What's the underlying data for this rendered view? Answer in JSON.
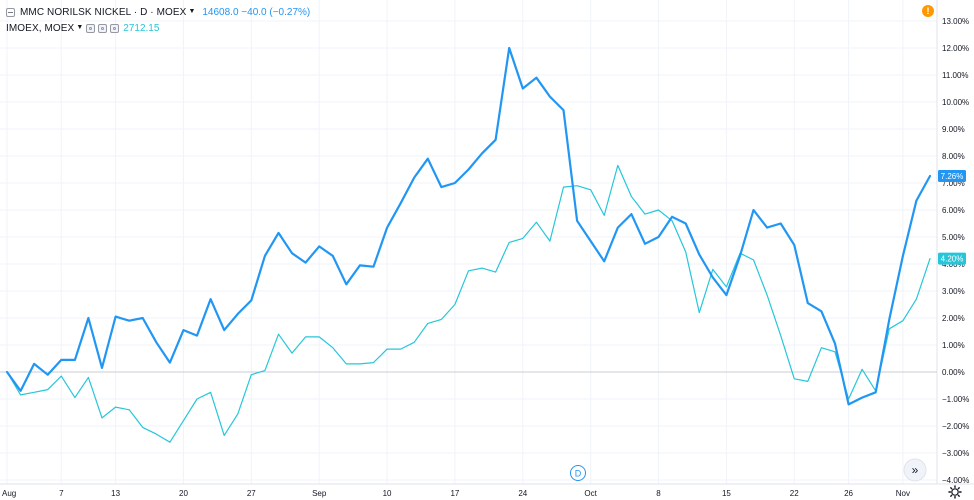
{
  "legend": {
    "main_symbol": "MMC NORILSK NICKEL · D · MOEX",
    "main_values": "14608.0 −40.0 (−0.27%)",
    "compare_symbol": "IMOEX, MOEX",
    "compare_value": "2712.15"
  },
  "alert_badge": "!",
  "interval_marker": "D",
  "scroll_button": "»",
  "settings_icon": "gear-icon",
  "colors": {
    "main": "#2196f3",
    "compare": "#26c6da",
    "grid": "#f0f3fa",
    "axis_text": "#131722",
    "zero_line": "#c8ccd6"
  },
  "chart_data": {
    "type": "line",
    "y_unit": "%",
    "ylim": [
      -4.6,
      13.6
    ],
    "y_ticks": [
      13,
      12,
      11,
      10,
      9,
      8,
      7,
      6,
      5,
      4,
      3,
      2,
      1,
      0,
      -1,
      -2,
      -3,
      -4
    ],
    "y_tick_labels": [
      "13.00%",
      "12.00%",
      "11.00%",
      "10.00%",
      "9.00%",
      "8.00%",
      "7.00%",
      "6.00%",
      "5.00%",
      "4.00%",
      "3.00%",
      "2.00%",
      "1.00%",
      "0.00%",
      "−1.00%",
      "−2.00%",
      "−3.00%",
      "−4.00%"
    ],
    "x_tick_labels": [
      {
        "label": "Aug",
        "day": 0
      },
      {
        "label": "7",
        "day": 4
      },
      {
        "label": "13",
        "day": 8
      },
      {
        "label": "20",
        "day": 13
      },
      {
        "label": "27",
        "day": 18
      },
      {
        "label": "Sep",
        "day": 23
      },
      {
        "label": "10",
        "day": 28
      },
      {
        "label": "17",
        "day": 33
      },
      {
        "label": "24",
        "day": 38
      },
      {
        "label": "Oct",
        "day": 43
      },
      {
        "label": "8",
        "day": 48
      },
      {
        "label": "15",
        "day": 53
      },
      {
        "label": "22",
        "day": 58
      },
      {
        "label": "26",
        "day": 62
      },
      {
        "label": "Nov",
        "day": 66
      }
    ],
    "x_days": [
      0,
      1,
      2,
      3,
      4,
      5,
      6,
      7,
      8,
      9,
      10,
      11,
      12,
      13,
      14,
      15,
      16,
      17,
      18,
      19,
      20,
      21,
      22,
      23,
      24,
      25,
      26,
      27,
      28,
      29,
      30,
      31,
      32,
      33,
      34,
      35,
      36,
      37,
      38,
      39,
      40,
      41,
      42,
      43,
      44,
      45,
      46,
      47,
      48,
      49,
      50,
      51,
      52,
      53,
      54,
      55,
      56,
      57,
      58,
      59,
      60,
      61,
      62,
      63,
      64,
      65,
      66,
      67,
      68
    ],
    "series": [
      {
        "label": "MMC NORILSK NICKEL",
        "last_label": "7.26%",
        "values": [
          0.0,
          -0.7,
          0.3,
          -0.1,
          0.45,
          0.45,
          2.0,
          0.15,
          2.05,
          1.9,
          2.0,
          1.1,
          0.35,
          1.55,
          1.35,
          2.7,
          1.55,
          2.15,
          2.65,
          4.3,
          5.15,
          4.4,
          4.05,
          4.65,
          4.3,
          3.25,
          3.95,
          3.9,
          5.35,
          6.25,
          7.2,
          7.9,
          6.85,
          7.0,
          7.5,
          8.1,
          8.6,
          12.0,
          10.5,
          10.9,
          10.2,
          9.7,
          5.6,
          4.85,
          4.1,
          5.35,
          5.85,
          4.75,
          5.0,
          5.75,
          5.5,
          4.35,
          3.5,
          2.85,
          4.3,
          6.0,
          5.35,
          5.5,
          4.7,
          2.55,
          2.25,
          1.05,
          -1.2,
          -0.95,
          -0.75,
          1.95,
          4.3,
          6.35,
          7.26
        ]
      },
      {
        "label": "IMOEX",
        "last_label": "4.20%",
        "values": [
          0.0,
          -0.85,
          -0.75,
          -0.65,
          -0.15,
          -0.95,
          -0.2,
          -1.7,
          -1.3,
          -1.4,
          -2.05,
          -2.3,
          -2.6,
          -1.8,
          -1.0,
          -0.75,
          -2.35,
          -1.55,
          -0.1,
          0.05,
          1.4,
          0.7,
          1.3,
          1.3,
          0.9,
          0.3,
          0.3,
          0.35,
          0.85,
          0.85,
          1.1,
          1.8,
          1.95,
          2.5,
          3.75,
          3.85,
          3.7,
          4.8,
          4.95,
          5.55,
          4.85,
          6.85,
          6.9,
          6.75,
          5.8,
          7.65,
          6.5,
          5.85,
          6.0,
          5.6,
          4.45,
          2.2,
          3.8,
          3.15,
          4.4,
          4.15,
          2.85,
          1.35,
          -0.25,
          -0.35,
          0.9,
          0.75,
          -1.0,
          0.1,
          -0.7,
          1.6,
          1.9,
          2.7,
          4.2
        ]
      }
    ]
  }
}
